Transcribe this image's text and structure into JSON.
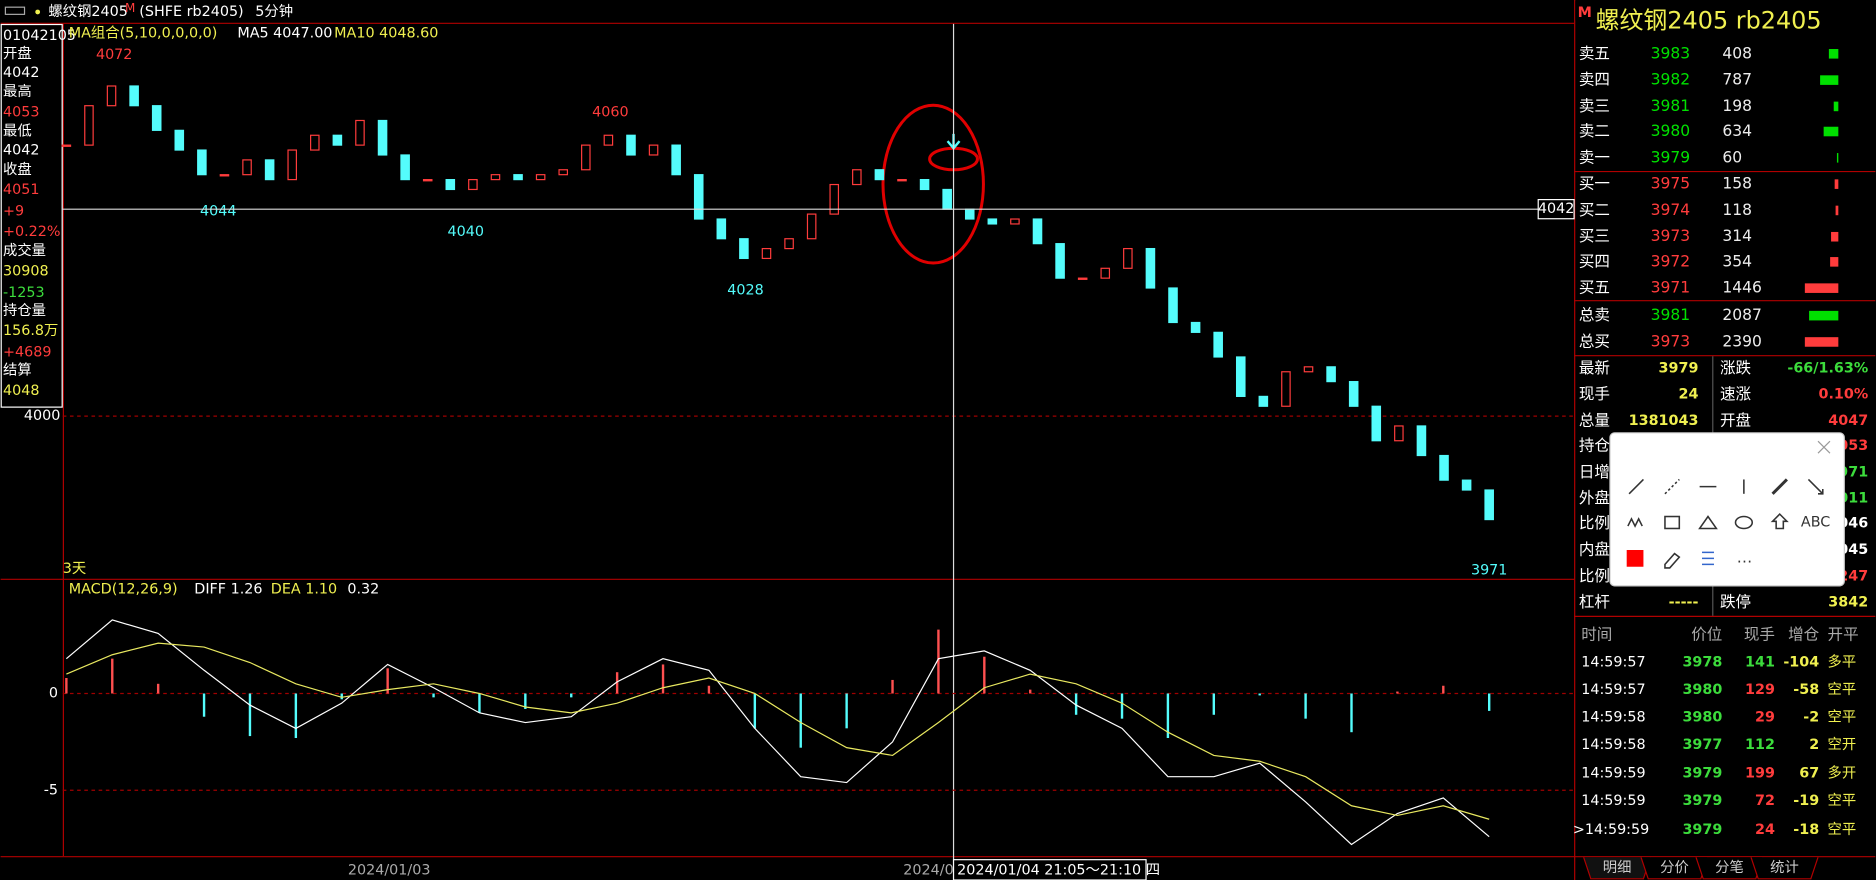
{
  "header": {
    "symbol": "螺纹钢2405",
    "badge": "M",
    "code": "(SHFE rb2405)",
    "period": "5分钟"
  },
  "info_panel": [
    {
      "text": "01042105",
      "color": "#ffffff"
    },
    {
      "text": "开盘",
      "color": "#ffffff"
    },
    {
      "text": "4042",
      "color": "#ffffff"
    },
    {
      "text": "最高",
      "color": "#ffffff"
    },
    {
      "text": "4053",
      "color": "#ff3c3c"
    },
    {
      "text": "最低",
      "color": "#ffffff"
    },
    {
      "text": "4042",
      "color": "#ffffff"
    },
    {
      "text": "收盘",
      "color": "#ffffff"
    },
    {
      "text": "4051",
      "color": "#ff3c3c"
    },
    {
      "text": "+9",
      "color": "#ff3c3c"
    },
    {
      "text": "+0.22%",
      "color": "#ff3c3c"
    },
    {
      "text": "成交量",
      "color": "#ffffff"
    },
    {
      "text": "30908",
      "color": "#f0f050"
    },
    {
      "text": "-1253",
      "color": "#3cdc3c"
    },
    {
      "text": "持仓量",
      "color": "#ffffff"
    },
    {
      "text": "156.8万",
      "color": "#f0f050"
    },
    {
      "text": "+4689",
      "color": "#ff3c3c"
    },
    {
      "text": "结算",
      "color": "#ffffff"
    },
    {
      "text": "4048",
      "color": "#f0f050"
    }
  ],
  "chart_data": [
    {
      "type": "candlestick",
      "indicator": "MA组合(5,10,0,0,0,0)",
      "ma5": "MA5 4047.00",
      "ma10": "MA10 4048.60",
      "range_label": "3天",
      "up_color": "#ff3c3c",
      "down_color": "#54fcfc",
      "close": [
        4055,
        4063,
        4067,
        4063,
        4058,
        4054,
        4049,
        4049,
        4052,
        4048,
        4054,
        4057,
        4055,
        4060,
        4053,
        4048,
        4048,
        4046,
        4048,
        4049,
        4048,
        4049,
        4050,
        4055,
        4057,
        4053,
        4055,
        4049,
        4040,
        4036,
        4032,
        4034,
        4036,
        4041,
        4047,
        4050,
        4048,
        4048,
        4046,
        4042,
        4040,
        4039,
        4040,
        4035,
        4028,
        4028,
        4030,
        4034,
        4026,
        4019,
        4017,
        4012,
        4004,
        4002,
        4009,
        4010,
        4007,
        4002,
        3995,
        3998,
        3992,
        3987,
        3985,
        3979
      ],
      "ylim": [
        3967,
        4079.6
      ],
      "yticks": [
        4000
      ],
      "extreme_labels": [
        4072,
        4044,
        4040,
        4060,
        4028,
        3971
      ],
      "crosshair_price": 4042,
      "x_labels": [
        "2024/01/03",
        "2024/0"
      ],
      "crosshair_time": "2024/01/04 21:05～21:10 四"
    },
    {
      "type": "macd",
      "title": "MACD(12,26,9)",
      "diff_label": "DIFF 1.26",
      "dea_label": "DEA 1.10",
      "macd_label": "0.32",
      "diff": [
        1.8,
        3.8,
        3.1,
        1.2,
        -0.6,
        -1.8,
        -0.5,
        1.5,
        0.3,
        -1.0,
        -1.5,
        -1.2,
        0.6,
        1.8,
        1.2,
        -1.8,
        -4.3,
        -4.6,
        -2.5,
        1.8,
        2.2,
        1.2,
        -0.6,
        -1.8,
        -4.3,
        -4.3,
        -3.6,
        -5.6,
        -7.8,
        -6.2,
        -5.4,
        -7.4
      ],
      "dea": [
        1.0,
        2.0,
        2.6,
        2.4,
        1.6,
        0.5,
        -0.2,
        0.2,
        0.5,
        0.0,
        -0.7,
        -1.0,
        -0.5,
        0.3,
        0.8,
        0.0,
        -1.5,
        -2.8,
        -3.2,
        -1.5,
        0.3,
        1.0,
        0.5,
        -0.5,
        -2.0,
        -3.2,
        -3.5,
        -4.3,
        -5.8,
        -6.3,
        -5.8,
        -6.5
      ],
      "hist": [
        0.8,
        1.8,
        0.5,
        -1.2,
        -2.2,
        -2.3,
        -0.3,
        1.3,
        -0.2,
        -1.0,
        -0.8,
        -0.2,
        1.1,
        1.5,
        0.4,
        -1.8,
        -2.8,
        -1.8,
        0.7,
        3.3,
        1.9,
        0.2,
        -1.1,
        -1.3,
        -2.3,
        -1.1,
        -0.1,
        -1.3,
        -2.0,
        0.1,
        0.4,
        -0.9
      ],
      "ylim": [
        -8.4,
        5.56
      ],
      "yticks": [
        0,
        -5
      ],
      "diff_color": "#ffffff",
      "dea_color": "#e8e860"
    }
  ],
  "quote_title": "螺纹钢2405  rb2405",
  "quote_badge": "M",
  "order_book": {
    "rows": [
      {
        "label": "卖五",
        "price": 3983,
        "volume": 408,
        "color": "#00e000"
      },
      {
        "label": "卖四",
        "price": 3982,
        "volume": 787,
        "color": "#00e000"
      },
      {
        "label": "卖三",
        "price": 3981,
        "volume": 198,
        "color": "#00e000"
      },
      {
        "label": "卖二",
        "price": 3980,
        "volume": 634,
        "color": "#00e000"
      },
      {
        "label": "卖一",
        "price": 3979,
        "volume": 60,
        "color": "#00e000"
      },
      {
        "label": "买一",
        "price": 3975,
        "volume": 158,
        "color": "#ff3c3c"
      },
      {
        "label": "买二",
        "price": 3974,
        "volume": 118,
        "color": "#ff3c3c"
      },
      {
        "label": "买三",
        "price": 3973,
        "volume": 314,
        "color": "#ff3c3c"
      },
      {
        "label": "买四",
        "price": 3972,
        "volume": 354,
        "color": "#ff3c3c"
      },
      {
        "label": "买五",
        "price": 3971,
        "volume": 1446,
        "color": "#ff3c3c"
      }
    ],
    "totals": [
      {
        "label": "总卖",
        "price": 3981,
        "volume": 2087,
        "color": "#00e000"
      },
      {
        "label": "总买",
        "price": 3973,
        "volume": 2390,
        "color": "#ff3c3c"
      }
    ]
  },
  "stats": [
    [
      {
        "text": "最新",
        "color": "#ffffff"
      },
      {
        "text": "3979",
        "color": "#f0f050"
      },
      {
        "text": "涨跌",
        "color": "#ffffff"
      },
      {
        "text": "-66/1.63%",
        "color": "#3cdc3c"
      }
    ],
    [
      {
        "text": "现手",
        "color": "#ffffff"
      },
      {
        "text": "24",
        "color": "#f0f050"
      },
      {
        "text": "速涨",
        "color": "#ffffff"
      },
      {
        "text": "0.10%",
        "color": "#ff3c3c"
      }
    ],
    [
      {
        "text": "总量",
        "color": "#ffffff"
      },
      {
        "text": "1381043",
        "color": "#f0f050"
      },
      {
        "text": "开盘",
        "color": "#ffffff"
      },
      {
        "text": "4047",
        "color": "#ff3c3c"
      }
    ],
    [
      {
        "text": "持仓",
        "color": "#ffffff"
      },
      {
        "text": "",
        "color": "#f0f050"
      },
      {
        "text": "",
        "color": "#ffffff"
      },
      {
        "text": "053",
        "color": "#ff3c3c"
      }
    ],
    [
      {
        "text": "日增",
        "color": "#ffffff"
      },
      {
        "text": "",
        "color": "#f0f050"
      },
      {
        "text": "",
        "color": "#ffffff"
      },
      {
        "text": "971",
        "color": "#3cdc3c"
      }
    ],
    [
      {
        "text": "外盘",
        "color": "#ffffff"
      },
      {
        "text": "",
        "color": "#f0f050"
      },
      {
        "text": "",
        "color": "#ffffff"
      },
      {
        "text": "011",
        "color": "#3cdc3c"
      }
    ],
    [
      {
        "text": "比例",
        "color": "#ffffff"
      },
      {
        "text": "",
        "color": "#f0f050"
      },
      {
        "text": "",
        "color": "#ffffff"
      },
      {
        "text": "046",
        "color": "#ffffff"
      }
    ],
    [
      {
        "text": "内盘",
        "color": "#ffffff"
      },
      {
        "text": "",
        "color": "#f0f050"
      },
      {
        "text": "",
        "color": "#ffffff"
      },
      {
        "text": "045",
        "color": "#ffffff"
      }
    ],
    [
      {
        "text": "比例",
        "color": "#ffffff"
      },
      {
        "text": "",
        "color": "#f0f050"
      },
      {
        "text": "",
        "color": "#ffffff"
      },
      {
        "text": "247",
        "color": "#ff3c3c"
      }
    ],
    [
      {
        "text": "杠杆",
        "color": "#ffffff"
      },
      {
        "text": "-----",
        "color": "#f0f050"
      },
      {
        "text": "跌停",
        "color": "#ffffff"
      },
      {
        "text": "3842",
        "color": "#f0f050"
      }
    ]
  ],
  "trades": {
    "header": [
      "时间",
      "价位",
      "现手",
      "增仓",
      "开平"
    ],
    "rows": [
      [
        {
          "text": "14:59:57",
          "color": "#ffffff"
        },
        {
          "text": "3978",
          "color": "#3cdc3c"
        },
        {
          "text": "141",
          "color": "#3cdc3c"
        },
        {
          "text": "-104",
          "color": "#f0f050"
        },
        {
          "text": "多平",
          "color": "#f0f050"
        }
      ],
      [
        {
          "text": "14:59:57",
          "color": "#ffffff"
        },
        {
          "text": "3980",
          "color": "#3cdc3c"
        },
        {
          "text": "129",
          "color": "#ff3c3c"
        },
        {
          "text": "-58",
          "color": "#f0f050"
        },
        {
          "text": "空平",
          "color": "#f0f050"
        }
      ],
      [
        {
          "text": "14:59:58",
          "color": "#ffffff"
        },
        {
          "text": "3980",
          "color": "#3cdc3c"
        },
        {
          "text": "29",
          "color": "#ff3c3c"
        },
        {
          "text": "-2",
          "color": "#f0f050"
        },
        {
          "text": "空平",
          "color": "#f0f050"
        }
      ],
      [
        {
          "text": "14:59:58",
          "color": "#ffffff"
        },
        {
          "text": "3977",
          "color": "#3cdc3c"
        },
        {
          "text": "112",
          "color": "#3cdc3c"
        },
        {
          "text": "2",
          "color": "#f0f050"
        },
        {
          "text": "空开",
          "color": "#f0f050"
        }
      ],
      [
        {
          "text": "14:59:59",
          "color": "#ffffff"
        },
        {
          "text": "3979",
          "color": "#3cdc3c"
        },
        {
          "text": "199",
          "color": "#ff3c3c"
        },
        {
          "text": "67",
          "color": "#f0f050"
        },
        {
          "text": "多开",
          "color": "#f0f050"
        }
      ],
      [
        {
          "text": "14:59:59",
          "color": "#ffffff"
        },
        {
          "text": "3979",
          "color": "#3cdc3c"
        },
        {
          "text": "72",
          "color": "#ff3c3c"
        },
        {
          "text": "-19",
          "color": "#f0f050"
        },
        {
          "text": "空平",
          "color": "#f0f050"
        }
      ],
      [
        {
          "text": ">14:59:59",
          "color": "#ffffff"
        },
        {
          "text": "3979",
          "color": "#3cdc3c"
        },
        {
          "text": "24",
          "color": "#ff3c3c"
        },
        {
          "text": "-18",
          "color": "#f0f050"
        },
        {
          "text": "空平",
          "color": "#f0f050"
        }
      ]
    ]
  },
  "tabs": [
    "明细",
    "分价",
    "分笔",
    "统计"
  ],
  "toolbar": {
    "text_tool": "ABC"
  }
}
